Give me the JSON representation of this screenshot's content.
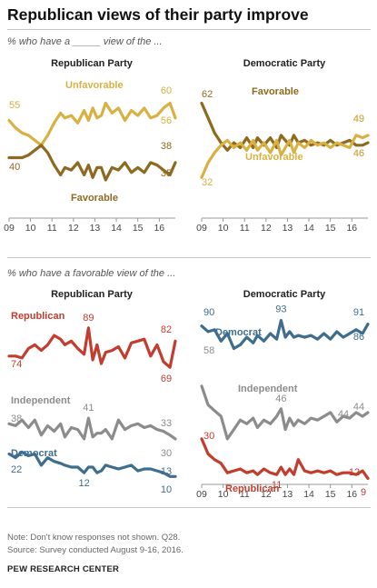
{
  "title": "Republican views of their party improve",
  "subtitle_top": "% who have a _____ view of the ...",
  "subtitle_bottom": "% who have a favorable view of the ...",
  "note": "Note: Don't know responses not shown. Q28.",
  "source_line": "Source: Survey conducted August 9-16, 2016.",
  "source_org": "PEW RESEARCH CENTER",
  "colors": {
    "unfavorable": "#d9b142",
    "favorable": "#8d6a20",
    "republican": "#c33d2e",
    "independent": "#8c8c8c",
    "democrat": "#3e6d8e"
  },
  "chart_data": [
    {
      "type": "line",
      "title": "Republican Party",
      "x_tick_labels": [
        "09",
        "10",
        "11",
        "12",
        "13",
        "14",
        "15",
        "16"
      ],
      "ylim": [
        20,
        75
      ],
      "series": [
        {
          "name": "Unfavorable",
          "color": "#d9b142",
          "start_label": "55",
          "end_label_a": "60",
          "end_label_b": "56",
          "x": [
            2009.0,
            2009.3,
            2009.6,
            2009.9,
            2010.2,
            2010.5,
            2010.8,
            2011.1,
            2011.4,
            2011.6,
            2011.9,
            2012.2,
            2012.5,
            2012.7,
            2012.9,
            2013.1,
            2013.3,
            2013.5,
            2013.8,
            2014.1,
            2014.4,
            2014.7,
            2015.0,
            2015.3,
            2015.6,
            2015.9,
            2016.2,
            2016.5,
            2016.75
          ],
          "values": [
            55,
            52,
            50,
            49,
            47,
            45,
            49,
            54,
            58,
            56,
            57,
            54,
            59,
            55,
            60,
            56,
            57,
            62,
            58,
            60,
            55,
            59,
            57,
            60,
            56,
            57,
            60,
            62,
            56
          ]
        },
        {
          "name": "Favorable",
          "color": "#8d6a20",
          "start_label": "40",
          "end_label_a": "38",
          "end_label_b": "35",
          "x": [
            2009.0,
            2009.3,
            2009.6,
            2009.9,
            2010.2,
            2010.5,
            2010.8,
            2011.1,
            2011.4,
            2011.6,
            2011.9,
            2012.2,
            2012.5,
            2012.7,
            2012.9,
            2013.1,
            2013.3,
            2013.5,
            2013.8,
            2014.1,
            2014.4,
            2014.7,
            2015.0,
            2015.3,
            2015.6,
            2015.9,
            2016.2,
            2016.5,
            2016.75
          ],
          "values": [
            40,
            40,
            40,
            41,
            43,
            45,
            42,
            37,
            33,
            36,
            35,
            38,
            33,
            37,
            32,
            36,
            36,
            31,
            36,
            35,
            38,
            34,
            36,
            34,
            38,
            37,
            35,
            33,
            38
          ]
        }
      ]
    },
    {
      "type": "line",
      "title": "Democratic Party",
      "x_tick_labels": [
        "09",
        "10",
        "11",
        "12",
        "13",
        "14",
        "15",
        "16"
      ],
      "ylim": [
        20,
        75
      ],
      "series": [
        {
          "name": "Favorable",
          "color": "#8d6a20",
          "start_label": "62",
          "end_label_a": "49",
          "end_label_b": "46",
          "x": [
            2009.0,
            2009.3,
            2009.6,
            2009.9,
            2010.2,
            2010.5,
            2010.8,
            2011.1,
            2011.4,
            2011.6,
            2011.9,
            2012.2,
            2012.5,
            2012.7,
            2012.9,
            2013.1,
            2013.3,
            2013.5,
            2013.8,
            2014.1,
            2014.4,
            2014.7,
            2015.0,
            2015.3,
            2015.6,
            2015.9,
            2016.2,
            2016.5,
            2016.75
          ],
          "values": [
            62,
            56,
            50,
            46,
            43,
            46,
            44,
            48,
            44,
            48,
            45,
            48,
            44,
            49,
            47,
            45,
            49,
            46,
            47,
            45,
            46,
            45,
            47,
            45,
            46,
            47,
            45,
            45,
            46
          ]
        },
        {
          "name": "Unfavorable",
          "color": "#d9b142",
          "start_label": "32",
          "end_label_a": "49",
          "end_label_b": "46",
          "x": [
            2009.0,
            2009.3,
            2009.6,
            2009.9,
            2010.2,
            2010.5,
            2010.8,
            2011.1,
            2011.4,
            2011.6,
            2011.9,
            2012.2,
            2012.5,
            2012.7,
            2012.9,
            2013.1,
            2013.3,
            2013.5,
            2013.8,
            2014.1,
            2014.4,
            2014.7,
            2015.0,
            2015.3,
            2015.6,
            2015.9,
            2016.2,
            2016.5,
            2016.75
          ],
          "values": [
            32,
            38,
            42,
            45,
            47,
            44,
            46,
            43,
            47,
            43,
            46,
            42,
            47,
            41,
            44,
            47,
            42,
            46,
            44,
            47,
            45,
            46,
            44,
            46,
            45,
            44,
            49,
            48,
            49
          ]
        }
      ]
    },
    {
      "type": "line",
      "title": "Republican Party",
      "x_tick_labels": [],
      "ylim": [
        0,
        100
      ],
      "series": [
        {
          "name": "Republican",
          "color": "#c33d2e",
          "start_label": "74",
          "end_label_a": "82",
          "end_label_b": "69",
          "x": [
            2009.0,
            2009.3,
            2009.6,
            2009.9,
            2010.2,
            2010.5,
            2010.8,
            2011.1,
            2011.4,
            2011.6,
            2011.9,
            2012.2,
            2012.5,
            2012.7,
            2012.9,
            2013.1,
            2013.3,
            2013.5,
            2013.8,
            2014.1,
            2014.4,
            2014.7,
            2015.0,
            2015.3,
            2015.6,
            2015.9,
            2016.2,
            2016.5,
            2016.75
          ],
          "values": [
            74,
            74,
            73,
            78,
            80,
            77,
            80,
            85,
            83,
            80,
            82,
            78,
            75,
            89,
            72,
            80,
            70,
            76,
            77,
            79,
            73,
            81,
            82,
            83,
            74,
            80,
            71,
            68,
            82
          ]
        },
        {
          "name": "Independent",
          "color": "#8c8c8c",
          "start_label": "38",
          "end_label_a": "33",
          "end_label_b": "30",
          "x": [
            2009.0,
            2009.3,
            2009.6,
            2009.9,
            2010.2,
            2010.5,
            2010.8,
            2011.1,
            2011.4,
            2011.6,
            2011.9,
            2012.2,
            2012.5,
            2012.7,
            2012.9,
            2013.1,
            2013.3,
            2013.5,
            2013.8,
            2014.1,
            2014.4,
            2014.7,
            2015.0,
            2015.3,
            2015.6,
            2015.9,
            2016.2,
            2016.5,
            2016.75
          ],
          "values": [
            38,
            37,
            40,
            36,
            40,
            32,
            37,
            34,
            38,
            31,
            36,
            35,
            30,
            41,
            31,
            33,
            33,
            35,
            30,
            40,
            35,
            37,
            38,
            36,
            37,
            35,
            34,
            32,
            30
          ]
        },
        {
          "name": "Democrat",
          "color": "#3e6d8e",
          "start_label": "22",
          "end_label_a": "13",
          "end_label_b": "10",
          "x": [
            2009.0,
            2009.3,
            2009.6,
            2009.9,
            2010.2,
            2010.5,
            2010.8,
            2011.1,
            2011.4,
            2011.6,
            2011.9,
            2012.2,
            2012.5,
            2012.7,
            2012.9,
            2013.1,
            2013.3,
            2013.5,
            2013.8,
            2014.1,
            2014.4,
            2014.7,
            2015.0,
            2015.3,
            2015.6,
            2015.9,
            2016.2,
            2016.5,
            2016.75
          ],
          "values": [
            22,
            20,
            23,
            21,
            22,
            16,
            20,
            18,
            17,
            16,
            15,
            15,
            12,
            15,
            15,
            12,
            13,
            16,
            15,
            14,
            15,
            16,
            13,
            14,
            14,
            13,
            12,
            10,
            10
          ]
        }
      ]
    },
    {
      "type": "line",
      "title": "Democratic Party",
      "x_tick_labels": [
        "09",
        "10",
        "11",
        "12",
        "13",
        "14",
        "15",
        "16"
      ],
      "ylim": [
        0,
        100
      ],
      "series": [
        {
          "name": "Democrat",
          "color": "#3e6d8e",
          "start_label": "90",
          "end_label_a": "91",
          "end_label_b": "86",
          "x": [
            2009.0,
            2009.3,
            2009.6,
            2009.9,
            2010.2,
            2010.5,
            2010.8,
            2011.1,
            2011.4,
            2011.6,
            2011.9,
            2012.2,
            2012.5,
            2012.7,
            2012.9,
            2013.1,
            2013.3,
            2013.5,
            2013.8,
            2014.1,
            2014.4,
            2014.7,
            2015.0,
            2015.3,
            2015.6,
            2015.9,
            2016.2,
            2016.5,
            2016.75
          ],
          "values": [
            90,
            87,
            88,
            82,
            86,
            78,
            80,
            84,
            81,
            85,
            82,
            86,
            83,
            93,
            84,
            87,
            84,
            85,
            84,
            85,
            83,
            86,
            83,
            87,
            84,
            86,
            88,
            86,
            91
          ]
        },
        {
          "name": "Independent",
          "color": "#8c8c8c",
          "start_label": "58",
          "end_label_a": "44",
          "end_label_b": "44",
          "x": [
            2009.0,
            2009.3,
            2009.6,
            2009.9,
            2010.2,
            2010.5,
            2010.8,
            2011.1,
            2011.4,
            2011.6,
            2011.9,
            2012.2,
            2012.5,
            2012.7,
            2012.9,
            2013.1,
            2013.3,
            2013.5,
            2013.8,
            2014.1,
            2014.4,
            2014.7,
            2015.0,
            2015.3,
            2015.6,
            2015.9,
            2016.2,
            2016.5,
            2016.75
          ],
          "values": [
            58,
            48,
            45,
            42,
            30,
            35,
            40,
            38,
            41,
            36,
            40,
            38,
            42,
            46,
            35,
            41,
            37,
            40,
            38,
            41,
            40,
            42,
            44,
            39,
            42,
            41,
            44,
            42,
            44
          ]
        },
        {
          "name": "Republican",
          "color": "#c33d2e",
          "start_label": "30",
          "end_label_a": "12",
          "end_label_b": "9",
          "x": [
            2009.0,
            2009.3,
            2009.6,
            2009.9,
            2010.2,
            2010.5,
            2010.8,
            2011.1,
            2011.4,
            2011.6,
            2011.9,
            2012.2,
            2012.5,
            2012.7,
            2012.9,
            2013.1,
            2013.3,
            2013.5,
            2013.8,
            2014.1,
            2014.4,
            2014.7,
            2015.0,
            2015.3,
            2015.6,
            2015.9,
            2016.2,
            2016.5,
            2016.75
          ],
          "values": [
            30,
            22,
            19,
            17,
            12,
            13,
            14,
            12,
            13,
            11,
            14,
            12,
            11,
            15,
            11,
            14,
            11,
            19,
            13,
            12,
            13,
            12,
            13,
            11,
            12,
            12,
            11,
            13,
            9
          ]
        }
      ]
    }
  ]
}
